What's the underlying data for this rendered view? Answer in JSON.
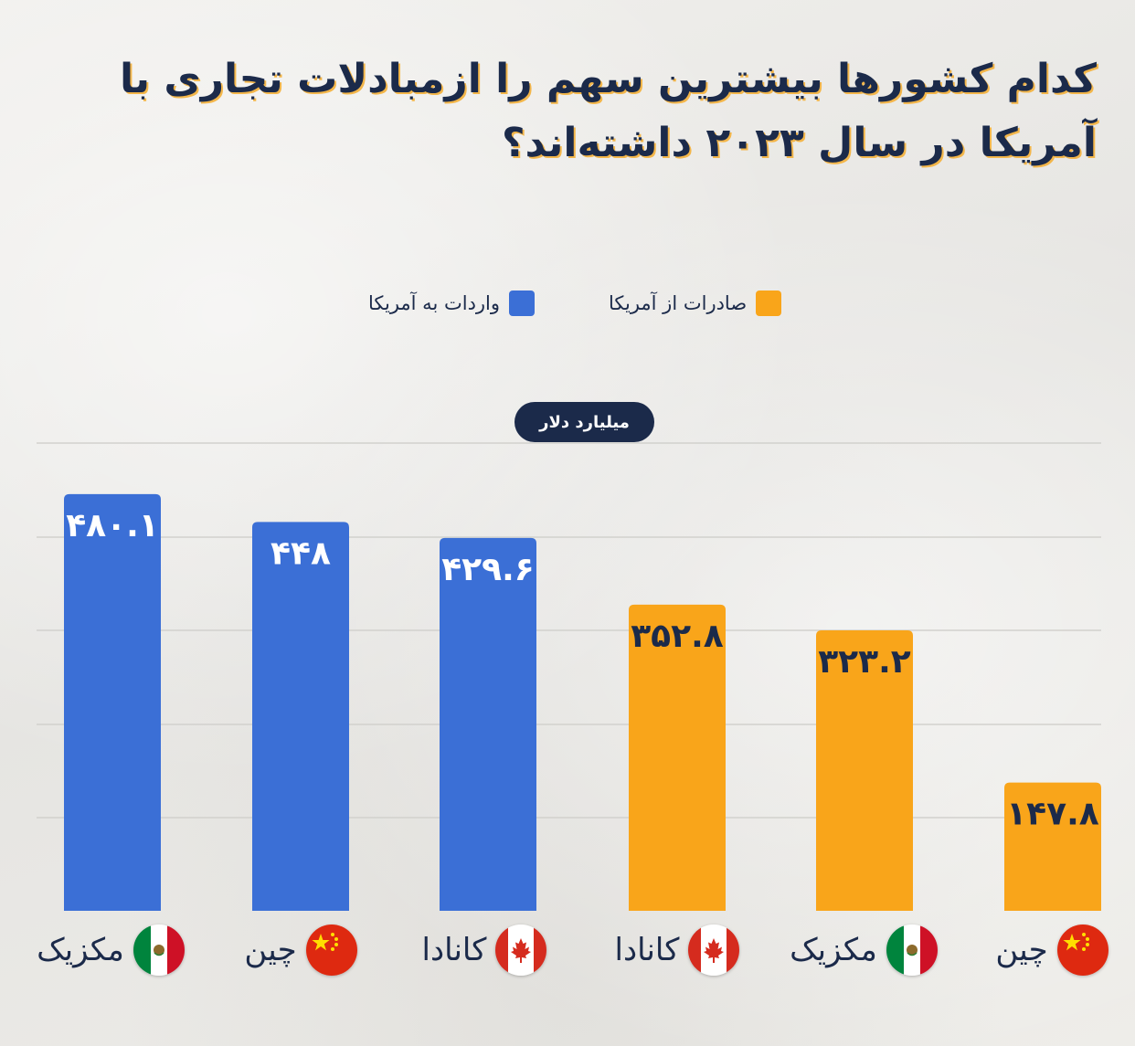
{
  "title": "کدام کشورها بیشترین سهم را ازمبادلات تجاری با آمریکا در سال ۲۰۲۳ داشته‌اند؟",
  "unit_badge": "میلیارد دلار",
  "colors": {
    "imports": "#3b6fd6",
    "exports": "#f9a51a",
    "title": "#1b2a4a",
    "title_shadow": "#f3b64a"
  },
  "chart_data": {
    "type": "bar",
    "title": "کدام کشورها بیشترین سهم را ازمبادلات تجاری با آمریکا در سال ۲۰۲۳ داشته‌اند؟",
    "ylabel": "میلیارد دلار",
    "ylim": [
      0,
      500
    ],
    "grid": true,
    "legend_position": "top",
    "series": [
      {
        "name": "واردات به آمریکا",
        "color": "#3b6fd6",
        "categories": [
          "مکزیک",
          "چین",
          "کانادا"
        ],
        "flags": [
          "mexico-flag-icon",
          "china-flag-icon",
          "canada-flag-icon"
        ],
        "values": [
          480.1,
          448,
          429.6
        ],
        "labels": [
          "۴۸۰.۱",
          "۴۴۸",
          "۴۲۹.۶"
        ]
      },
      {
        "name": "صادرات از آمریکا",
        "color": "#f9a51a",
        "categories": [
          "کانادا",
          "مکزیک",
          "چین"
        ],
        "flags": [
          "canada-flag-icon",
          "mexico-flag-icon",
          "china-flag-icon"
        ],
        "values": [
          352.8,
          323.2,
          147.8
        ],
        "labels": [
          "۳۵۲.۸",
          "۳۲۳.۲",
          "۱۴۷.۸"
        ]
      }
    ]
  }
}
